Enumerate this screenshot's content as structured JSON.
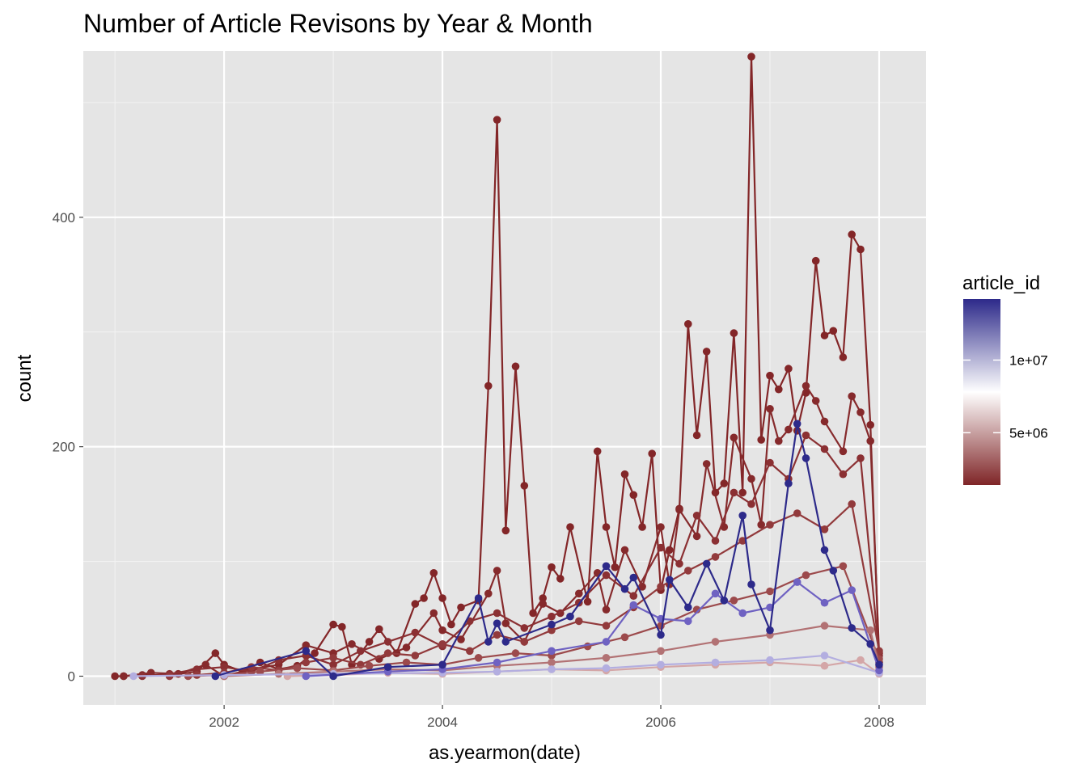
{
  "chart_data": {
    "type": "line",
    "title": "Number of Article Revisons by Year & Month",
    "xlabel": "as.yearmon(date)",
    "ylabel": "count",
    "xlim": [
      2000.71,
      2008.43
    ],
    "ylim": [
      -25,
      545
    ],
    "x_ticks": [
      2002,
      2004,
      2006,
      2008
    ],
    "x_tick_labels": [
      "2002",
      "2004",
      "2006",
      "2008"
    ],
    "y_ticks": [
      0,
      200,
      400
    ],
    "y_tick_labels": [
      "0",
      "200",
      "400"
    ],
    "y_minor_ticks": [
      100,
      300,
      500
    ],
    "grid": true,
    "legend": {
      "title": "article_id",
      "placement": "right",
      "breaks": [
        10000000,
        5000000
      ],
      "break_labels": [
        "1e+07",
        "5e+06"
      ],
      "range": [
        1400000,
        14200000
      ],
      "colors": [
        "#7f2527",
        "#ffffff",
        "#2d2a8a"
      ]
    },
    "series": [
      {
        "article_id": 1400000,
        "color": "#832628",
        "points": [
          [
            2001.0,
            0
          ],
          [
            2001.08,
            0
          ],
          [
            2001.25,
            1
          ],
          [
            2001.5,
            1
          ],
          [
            2001.75,
            4
          ],
          [
            2001.92,
            20
          ],
          [
            2002.0,
            10
          ],
          [
            2002.17,
            4
          ],
          [
            2002.33,
            12
          ],
          [
            2002.5,
            6
          ],
          [
            2002.67,
            9
          ],
          [
            2002.83,
            20
          ],
          [
            2003.0,
            45
          ],
          [
            2003.08,
            43
          ],
          [
            2003.17,
            10
          ],
          [
            2003.33,
            30
          ],
          [
            2003.42,
            41
          ],
          [
            2003.58,
            20
          ],
          [
            2003.75,
            63
          ],
          [
            2003.83,
            68
          ],
          [
            2003.92,
            90
          ],
          [
            2004.0,
            68
          ],
          [
            2004.08,
            45
          ],
          [
            2004.17,
            60
          ],
          [
            2004.33,
            66
          ],
          [
            2004.42,
            253
          ],
          [
            2004.5,
            485
          ],
          [
            2004.58,
            127
          ],
          [
            2004.67,
            270
          ],
          [
            2004.75,
            166
          ],
          [
            2004.83,
            55
          ],
          [
            2004.92,
            68
          ],
          [
            2005.0,
            95
          ],
          [
            2005.08,
            85
          ],
          [
            2005.17,
            130
          ],
          [
            2005.33,
            65
          ],
          [
            2005.42,
            196
          ],
          [
            2005.5,
            130
          ],
          [
            2005.58,
            95
          ],
          [
            2005.67,
            176
          ],
          [
            2005.75,
            158
          ],
          [
            2005.83,
            130
          ],
          [
            2005.92,
            194
          ],
          [
            2006.0,
            75
          ],
          [
            2006.08,
            110
          ],
          [
            2006.17,
            146
          ],
          [
            2006.25,
            307
          ],
          [
            2006.33,
            210
          ],
          [
            2006.42,
            283
          ],
          [
            2006.5,
            160
          ],
          [
            2006.58,
            168
          ],
          [
            2006.67,
            299
          ],
          [
            2006.75,
            160
          ],
          [
            2006.83,
            540
          ],
          [
            2006.92,
            206
          ],
          [
            2007.0,
            262
          ],
          [
            2007.08,
            250
          ],
          [
            2007.17,
            268
          ],
          [
            2007.25,
            214
          ],
          [
            2007.33,
            247
          ],
          [
            2007.42,
            362
          ],
          [
            2007.5,
            297
          ],
          [
            2007.58,
            301
          ],
          [
            2007.67,
            278
          ],
          [
            2007.75,
            385
          ],
          [
            2007.83,
            372
          ],
          [
            2007.92,
            219
          ],
          [
            2008.0,
            12
          ]
        ]
      },
      {
        "article_id": 1900000,
        "color": "#862a2c",
        "points": [
          [
            2001.08,
            0
          ],
          [
            2001.33,
            3
          ],
          [
            2001.58,
            2
          ],
          [
            2001.83,
            10
          ],
          [
            2002.0,
            0
          ],
          [
            2002.25,
            6
          ],
          [
            2002.5,
            10
          ],
          [
            2002.75,
            27
          ],
          [
            2003.0,
            20
          ],
          [
            2003.17,
            28
          ],
          [
            2003.42,
            15
          ],
          [
            2003.67,
            25
          ],
          [
            2003.92,
            55
          ],
          [
            2004.0,
            40
          ],
          [
            2004.17,
            32
          ],
          [
            2004.42,
            72
          ],
          [
            2004.5,
            92
          ],
          [
            2004.58,
            46
          ],
          [
            2004.75,
            30
          ],
          [
            2004.92,
            63
          ],
          [
            2005.08,
            55
          ],
          [
            2005.25,
            72
          ],
          [
            2005.42,
            90
          ],
          [
            2005.5,
            58
          ],
          [
            2005.67,
            110
          ],
          [
            2005.83,
            78
          ],
          [
            2006.0,
            130
          ],
          [
            2006.08,
            80
          ],
          [
            2006.17,
            145
          ],
          [
            2006.33,
            122
          ],
          [
            2006.42,
            185
          ],
          [
            2006.58,
            130
          ],
          [
            2006.67,
            208
          ],
          [
            2006.83,
            172
          ],
          [
            2006.92,
            132
          ],
          [
            2007.0,
            233
          ],
          [
            2007.08,
            205
          ],
          [
            2007.17,
            215
          ],
          [
            2007.33,
            253
          ],
          [
            2007.42,
            240
          ],
          [
            2007.5,
            222
          ],
          [
            2007.67,
            196
          ],
          [
            2007.75,
            244
          ],
          [
            2007.83,
            230
          ],
          [
            2007.92,
            205
          ],
          [
            2008.0,
            20
          ]
        ]
      },
      {
        "article_id": 2500000,
        "color": "#8b3033",
        "points": [
          [
            2001.25,
            0
          ],
          [
            2001.5,
            2
          ],
          [
            2001.75,
            6
          ],
          [
            2002.0,
            8
          ],
          [
            2002.25,
            4
          ],
          [
            2002.5,
            14
          ],
          [
            2002.75,
            18
          ],
          [
            2003.0,
            10
          ],
          [
            2003.25,
            22
          ],
          [
            2003.5,
            30
          ],
          [
            2003.75,
            38
          ],
          [
            2004.0,
            26
          ],
          [
            2004.25,
            48
          ],
          [
            2004.5,
            55
          ],
          [
            2004.75,
            42
          ],
          [
            2005.0,
            52
          ],
          [
            2005.25,
            64
          ],
          [
            2005.5,
            88
          ],
          [
            2005.75,
            70
          ],
          [
            2006.0,
            112
          ],
          [
            2006.17,
            98
          ],
          [
            2006.33,
            140
          ],
          [
            2006.5,
            118
          ],
          [
            2006.67,
            160
          ],
          [
            2006.83,
            150
          ],
          [
            2007.0,
            186
          ],
          [
            2007.17,
            172
          ],
          [
            2007.33,
            210
          ],
          [
            2007.5,
            198
          ],
          [
            2007.67,
            176
          ],
          [
            2007.83,
            190
          ],
          [
            2008.0,
            18
          ]
        ]
      },
      {
        "article_id": 3000000,
        "color": "#923a3c",
        "points": [
          [
            2001.5,
            0
          ],
          [
            2001.75,
            1
          ],
          [
            2002.0,
            3
          ],
          [
            2002.25,
            8
          ],
          [
            2002.5,
            5
          ],
          [
            2002.75,
            12
          ],
          [
            2003.0,
            16
          ],
          [
            2003.25,
            10
          ],
          [
            2003.5,
            20
          ],
          [
            2003.75,
            18
          ],
          [
            2004.0,
            28
          ],
          [
            2004.25,
            22
          ],
          [
            2004.5,
            36
          ],
          [
            2004.75,
            30
          ],
          [
            2005.0,
            40
          ],
          [
            2005.25,
            48
          ],
          [
            2005.5,
            44
          ],
          [
            2005.75,
            60
          ],
          [
            2006.0,
            78
          ],
          [
            2006.25,
            92
          ],
          [
            2006.5,
            104
          ],
          [
            2006.75,
            118
          ],
          [
            2007.0,
            132
          ],
          [
            2007.25,
            142
          ],
          [
            2007.5,
            128
          ],
          [
            2007.75,
            150
          ],
          [
            2008.0,
            22
          ]
        ]
      },
      {
        "article_id": 3700000,
        "color": "#9c4a4c",
        "points": [
          [
            2001.67,
            0
          ],
          [
            2002.0,
            1
          ],
          [
            2002.33,
            4
          ],
          [
            2002.67,
            7
          ],
          [
            2003.0,
            5
          ],
          [
            2003.33,
            9
          ],
          [
            2003.67,
            12
          ],
          [
            2004.0,
            10
          ],
          [
            2004.33,
            16
          ],
          [
            2004.67,
            20
          ],
          [
            2005.0,
            18
          ],
          [
            2005.33,
            26
          ],
          [
            2005.67,
            34
          ],
          [
            2006.0,
            44
          ],
          [
            2006.33,
            58
          ],
          [
            2006.67,
            66
          ],
          [
            2007.0,
            74
          ],
          [
            2007.33,
            88
          ],
          [
            2007.67,
            96
          ],
          [
            2008.0,
            15
          ]
        ]
      },
      {
        "article_id": 4500000,
        "color": "#b27274",
        "points": [
          [
            2002.0,
            0
          ],
          [
            2002.5,
            2
          ],
          [
            2003.0,
            4
          ],
          [
            2003.5,
            6
          ],
          [
            2004.0,
            5
          ],
          [
            2004.5,
            9
          ],
          [
            2005.0,
            12
          ],
          [
            2005.5,
            16
          ],
          [
            2006.0,
            22
          ],
          [
            2006.5,
            30
          ],
          [
            2007.0,
            36
          ],
          [
            2007.5,
            44
          ],
          [
            2007.92,
            40
          ],
          [
            2008.0,
            8
          ]
        ]
      },
      {
        "article_id": 5600000,
        "color": "#d4a6a7",
        "points": [
          [
            2002.58,
            0
          ],
          [
            2003.0,
            1
          ],
          [
            2003.5,
            3
          ],
          [
            2004.0,
            2
          ],
          [
            2004.5,
            4
          ],
          [
            2005.0,
            6
          ],
          [
            2005.5,
            5
          ],
          [
            2006.0,
            8
          ],
          [
            2006.5,
            10
          ],
          [
            2007.0,
            12
          ],
          [
            2007.5,
            9
          ],
          [
            2007.83,
            14
          ],
          [
            2008.0,
            2
          ]
        ]
      },
      {
        "article_id": 9300000,
        "color": "#b3aee0",
        "points": [
          [
            2001.17,
            0
          ],
          [
            2002.0,
            1
          ],
          [
            2003.0,
            2
          ],
          [
            2004.0,
            3
          ],
          [
            2004.5,
            4
          ],
          [
            2005.0,
            6
          ],
          [
            2005.5,
            7
          ],
          [
            2006.0,
            10
          ],
          [
            2006.5,
            12
          ],
          [
            2007.0,
            14
          ],
          [
            2007.5,
            18
          ],
          [
            2008.0,
            3
          ]
        ]
      },
      {
        "article_id": 11500000,
        "color": "#6f62c2",
        "points": [
          [
            2002.75,
            0
          ],
          [
            2003.5,
            4
          ],
          [
            2004.0,
            6
          ],
          [
            2004.5,
            12
          ],
          [
            2005.0,
            22
          ],
          [
            2005.5,
            30
          ],
          [
            2005.75,
            62
          ],
          [
            2006.0,
            50
          ],
          [
            2006.25,
            48
          ],
          [
            2006.5,
            72
          ],
          [
            2006.75,
            55
          ],
          [
            2007.0,
            60
          ],
          [
            2007.25,
            82
          ],
          [
            2007.5,
            64
          ],
          [
            2007.75,
            75
          ],
          [
            2008.0,
            5
          ]
        ]
      },
      {
        "article_id": 14200000,
        "color": "#2d2a8a",
        "points": [
          [
            2001.92,
            0
          ],
          [
            2002.75,
            22
          ],
          [
            2003.0,
            0
          ],
          [
            2003.5,
            8
          ],
          [
            2004.0,
            10
          ],
          [
            2004.33,
            68
          ],
          [
            2004.42,
            30
          ],
          [
            2004.5,
            46
          ],
          [
            2004.58,
            30
          ],
          [
            2005.0,
            45
          ],
          [
            2005.17,
            52
          ],
          [
            2005.5,
            96
          ],
          [
            2005.67,
            76
          ],
          [
            2005.75,
            86
          ],
          [
            2006.0,
            36
          ],
          [
            2006.08,
            84
          ],
          [
            2006.25,
            60
          ],
          [
            2006.42,
            98
          ],
          [
            2006.58,
            66
          ],
          [
            2006.75,
            140
          ],
          [
            2006.83,
            80
          ],
          [
            2007.0,
            40
          ],
          [
            2007.17,
            168
          ],
          [
            2007.25,
            220
          ],
          [
            2007.33,
            190
          ],
          [
            2007.5,
            110
          ],
          [
            2007.58,
            92
          ],
          [
            2007.75,
            42
          ],
          [
            2007.92,
            28
          ],
          [
            2008.0,
            10
          ]
        ]
      }
    ]
  }
}
